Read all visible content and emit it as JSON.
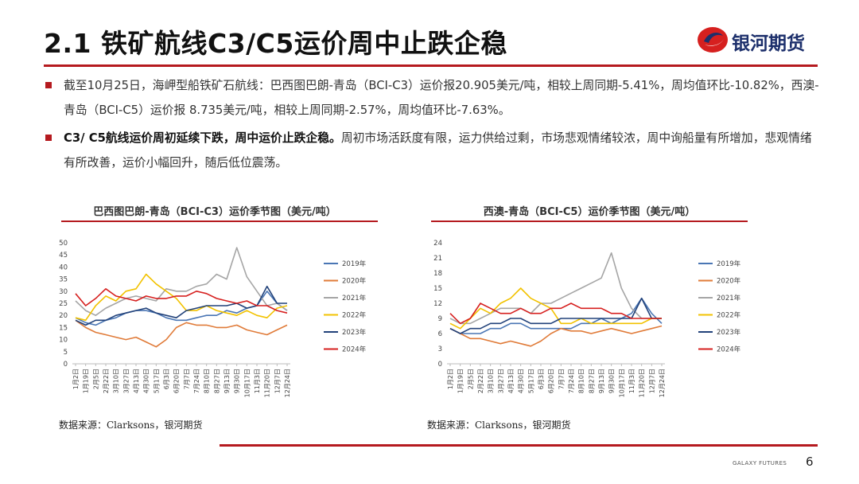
{
  "slide": {
    "title": "2.1 铁矿航线C3/C5运价周中止跌企稳",
    "logo_text": "银河期货",
    "footer_brand": "GALAXY FUTURES",
    "page_number": "6",
    "accent_color": "#b51a1f",
    "logo_color": "#1c2f6b"
  },
  "bullets": [
    {
      "bold": "",
      "text": "截至10月25日，海岬型船铁矿石航线：巴西图巴朗-青岛（BCI-C3）运价报20.905美元/吨，相较上周同期-5.41%，周均值环比-10.82%，西澳-青岛（BCI-C5）运价报 8.735美元/吨，相较上周同期-2.57%，周均值环比-7.63%。"
    },
    {
      "bold": "C3/ C5航线运价周初延续下跌，周中运价止跌企稳。",
      "text": "周初市场活跃度有限，运力供给过剩，市场悲观情绪较浓，周中询船量有所增加，悲观情绪有所改善，运价小幅回升，随后低位震荡。"
    }
  ],
  "source_left": "数据来源：Clarksons，银河期货",
  "source_right": "数据来源：Clarksons，银河期货",
  "chart_data": [
    {
      "type": "line",
      "title": "巴西图巴朗-青岛（BCI-C3）运价季节图（美元/吨）",
      "xlabel": "",
      "ylabel": "",
      "ylim": [
        0,
        50
      ],
      "yticks": [
        0,
        5,
        10,
        15,
        20,
        25,
        30,
        35,
        40,
        45,
        50
      ],
      "xticks": [
        "1月2日",
        "1月19日",
        "2月5日",
        "2月22日",
        "3月10日",
        "3月27日",
        "4月13日",
        "4月30日",
        "5月17日",
        "6月3日",
        "6月20日",
        "7月7日",
        "7月24日",
        "8月10日",
        "8月27日",
        "9月13日",
        "9月30日",
        "10月17日",
        "11月3日",
        "11月20日",
        "12月7日",
        "12月24日"
      ],
      "legend": "right",
      "series": [
        {
          "name": "2019年",
          "color": "#4a76b4",
          "values": [
            19,
            17,
            16,
            18,
            19,
            21,
            22,
            22,
            21,
            19,
            18,
            18,
            19,
            20,
            20,
            22,
            21,
            23,
            24,
            30,
            25,
            22
          ]
        },
        {
          "name": "2020年",
          "color": "#e07b39",
          "values": [
            18,
            15,
            13,
            12,
            11,
            10,
            11,
            9,
            7,
            10,
            15,
            17,
            16,
            16,
            15,
            15,
            16,
            14,
            13,
            12,
            14,
            16
          ]
        },
        {
          "name": "2021年",
          "color": "#a5a5a5",
          "values": [
            26,
            22,
            20,
            23,
            25,
            27,
            28,
            27,
            26,
            31,
            30,
            30,
            32,
            33,
            37,
            35,
            48,
            36,
            30,
            24,
            25,
            22
          ]
        },
        {
          "name": "2022年",
          "color": "#f2c200",
          "values": [
            19,
            18,
            24,
            28,
            26,
            30,
            31,
            37,
            33,
            30,
            27,
            22,
            22,
            24,
            22,
            21,
            20,
            22,
            20,
            19,
            23,
            24
          ]
        },
        {
          "name": "2023年",
          "color": "#22427a",
          "values": [
            18,
            16,
            18,
            18,
            20,
            21,
            22,
            23,
            21,
            20,
            19,
            22,
            23,
            24,
            24,
            24,
            25,
            23,
            24,
            32,
            25,
            25
          ]
        },
        {
          "name": "2024年",
          "color": "#d6201f",
          "values": [
            29,
            24,
            27,
            31,
            28,
            27,
            26,
            28,
            27,
            27,
            28,
            28,
            30,
            29,
            27,
            26,
            25,
            26,
            24,
            24,
            22,
            21
          ]
        }
      ]
    },
    {
      "type": "line",
      "title": "西澳-青岛（BCI-C5）运价季节图（美元/吨）",
      "xlabel": "",
      "ylabel": "",
      "ylim": [
        0,
        24
      ],
      "yticks": [
        0,
        3,
        6,
        9,
        12,
        15,
        18,
        21,
        24
      ],
      "xticks": [
        "1月2日",
        "1月19日",
        "2月5日",
        "2月22日",
        "3月10日",
        "3月27日",
        "4月13日",
        "4月30日",
        "5月17日",
        "6月3日",
        "6月20日",
        "7月7日",
        "7月24日",
        "8月10日",
        "8月27日",
        "9月13日",
        "9月30日",
        "10月17日",
        "11月3日",
        "11月20日",
        "12月7日",
        "12月24日"
      ],
      "legend": "right",
      "series": [
        {
          "name": "2019年",
          "color": "#4a76b4",
          "values": [
            7,
            6,
            6,
            6,
            7,
            7,
            8,
            8,
            7,
            7,
            7,
            7,
            7,
            8,
            8,
            9,
            8,
            9,
            10,
            13,
            10,
            8
          ]
        },
        {
          "name": "2020年",
          "color": "#e07b39",
          "values": [
            7,
            6,
            5,
            5,
            4.5,
            4,
            4.5,
            4,
            3.5,
            4.5,
            6,
            7,
            6.5,
            6.5,
            6,
            6.5,
            7,
            6.5,
            6,
            6.5,
            7,
            7.5
          ]
        },
        {
          "name": "2021年",
          "color": "#a5a5a5",
          "values": [
            9,
            8,
            8,
            9,
            10,
            11,
            11,
            11,
            10,
            12,
            12,
            13,
            14,
            15,
            16,
            17,
            22,
            15,
            11,
            9,
            9,
            9
          ]
        },
        {
          "name": "2022年",
          "color": "#f2c200",
          "values": [
            8,
            7,
            9,
            11,
            10,
            12,
            13,
            15,
            13,
            12,
            11,
            8,
            8,
            9,
            8,
            8,
            8,
            8,
            8,
            8,
            9,
            9
          ]
        },
        {
          "name": "2023年",
          "color": "#22427a",
          "values": [
            7,
            6,
            7,
            7,
            8,
            8,
            9,
            9,
            8,
            8,
            8,
            9,
            9,
            9,
            9,
            9,
            9,
            9,
            9,
            13,
            9,
            9
          ]
        },
        {
          "name": "2024年",
          "color": "#d6201f",
          "values": [
            10,
            8,
            9,
            12,
            11,
            10,
            10,
            11,
            10,
            10,
            11,
            11,
            12,
            11,
            11,
            11,
            10,
            10,
            9,
            9,
            9,
            9
          ]
        }
      ]
    }
  ]
}
